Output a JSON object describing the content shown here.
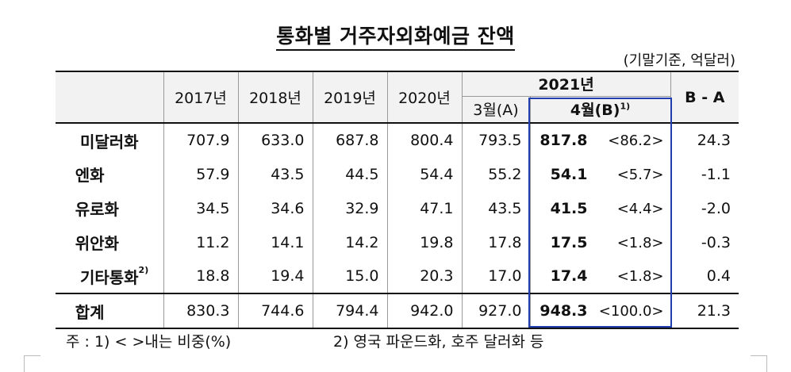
{
  "title": "통화별 거주자외화예금 잔액",
  "unit": "(기말기준, 억달러)",
  "header": {
    "years": [
      "2017년",
      "2018년",
      "2019년",
      "2020년"
    ],
    "year2021": "2021년",
    "march": "3월(A)",
    "april": "4월(B)",
    "april_note": "1)",
    "diff": "B - A"
  },
  "rows": [
    {
      "name": "미달러화",
      "note": "",
      "v2017": "707.9",
      "v2018": "633.0",
      "v2019": "687.8",
      "v2020": "800.4",
      "mar": "793.5",
      "apr": "817.8",
      "share": "<86.2>",
      "diff": "24.3"
    },
    {
      "name": "엔화",
      "note": "",
      "v2017": "57.9",
      "v2018": "43.5",
      "v2019": "44.5",
      "v2020": "54.4",
      "mar": "55.2",
      "apr": "54.1",
      "share": "<5.7>",
      "diff": "-1.1"
    },
    {
      "name": "유로화",
      "note": "",
      "v2017": "34.5",
      "v2018": "34.6",
      "v2019": "32.9",
      "v2020": "47.1",
      "mar": "43.5",
      "apr": "41.5",
      "share": "<4.4>",
      "diff": "-2.0"
    },
    {
      "name": "위안화",
      "note": "",
      "v2017": "11.2",
      "v2018": "14.1",
      "v2019": "14.2",
      "v2020": "19.8",
      "mar": "17.8",
      "apr": "17.5",
      "share": "<1.8>",
      "diff": "-0.3"
    },
    {
      "name": "기타통화",
      "note": "2)",
      "v2017": "18.8",
      "v2018": "19.4",
      "v2019": "15.0",
      "v2020": "20.3",
      "mar": "17.0",
      "apr": "17.4",
      "share": "<1.8>",
      "diff": "0.4"
    }
  ],
  "total": {
    "name": "합계",
    "v2017": "830.3",
    "v2018": "744.6",
    "v2019": "794.4",
    "v2020": "942.0",
    "mar": "927.0",
    "apr": "948.3",
    "share": "<100.0>",
    "diff": "21.3"
  },
  "footnote1": "주 : 1) <   >내는 비중(%)",
  "footnote2": "2) 영국 파운드화, 호주 달러화 등",
  "colors": {
    "highlight_border": "#1f3fb0",
    "header_bg": "#f2f2f2"
  }
}
